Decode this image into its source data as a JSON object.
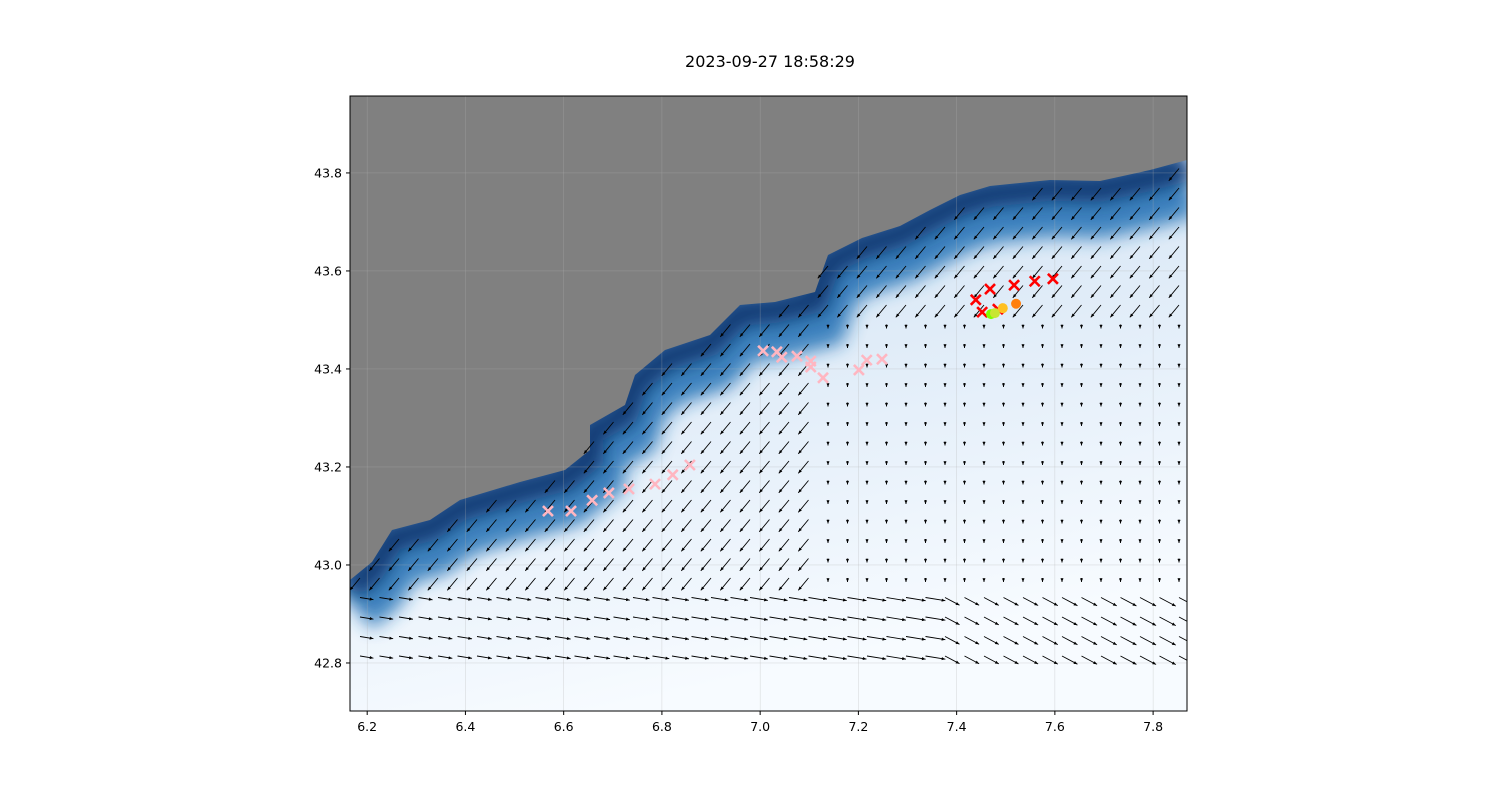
{
  "title": "2023-09-27 18:58:29",
  "map": {
    "xlim": [
      6.165,
      7.869
    ],
    "ylim": [
      42.702,
      43.957
    ],
    "x_ticks": [
      "6.2",
      "6.4",
      "6.6",
      "6.8",
      "7.0",
      "7.2",
      "7.4",
      "7.6",
      "7.8"
    ],
    "y_ticks": [
      "42.8",
      "43.0",
      "43.2",
      "43.4",
      "43.6",
      "43.8"
    ],
    "grid": true,
    "colors": {
      "land": "#808080",
      "deep_water": "#08306b",
      "shallow_water": "#f7fbff",
      "pink_marker": "#ffb6c1",
      "red_marker": "#ff0000"
    },
    "pink_crosses": [
      [
        6.568,
        43.11
      ],
      [
        6.615,
        43.11
      ],
      [
        6.658,
        43.132
      ],
      [
        6.692,
        43.147
      ],
      [
        6.733,
        43.155
      ],
      [
        6.786,
        43.165
      ],
      [
        6.822,
        43.184
      ],
      [
        6.857,
        43.204
      ],
      [
        7.006,
        43.437
      ],
      [
        7.034,
        43.435
      ],
      [
        7.044,
        43.424
      ],
      [
        7.075,
        43.426
      ],
      [
        7.103,
        43.416
      ],
      [
        7.103,
        43.404
      ],
      [
        7.128,
        43.382
      ],
      [
        7.201,
        43.398
      ],
      [
        7.217,
        43.418
      ],
      [
        7.248,
        43.42
      ]
    ],
    "red_crosses": [
      [
        7.439,
        43.541
      ],
      [
        7.468,
        43.563
      ],
      [
        7.517,
        43.571
      ],
      [
        7.559,
        43.579
      ],
      [
        7.596,
        43.584
      ],
      [
        7.452,
        43.516
      ],
      [
        7.484,
        43.522
      ]
    ],
    "dots": [
      {
        "lon": 7.47,
        "lat": 43.512,
        "color": "#7fff00"
      },
      {
        "lon": 7.478,
        "lat": 43.514,
        "color": "#c8e632"
      },
      {
        "lon": 7.494,
        "lat": 43.524,
        "color": "#ffc020"
      },
      {
        "lon": 7.521,
        "lat": 43.533,
        "color": "#ff7f0e"
      }
    ],
    "current_vectors": "quiver"
  }
}
